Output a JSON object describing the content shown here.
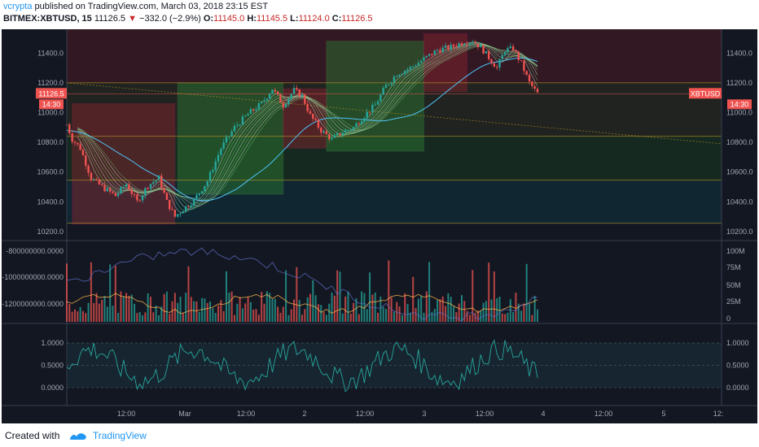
{
  "header": {
    "publisher": "vcrypta",
    "published_text": "published on TradingView.com, March 03, 2018 23:15 EST",
    "symbol": "BITMEX:XBTUSD, 15",
    "last": "11126.5",
    "change": "−332.0 (−2.9%)",
    "o_label": "O:",
    "o_value": "11145.0",
    "h_label": "H:",
    "h_value": "11145.5",
    "l_label": "L:",
    "l_value": "11124.0",
    "c_label": "C:",
    "c_value": "11126.5"
  },
  "footer": {
    "created_with": "Created with",
    "brand": "TradingView"
  },
  "colors": {
    "background": "#131722",
    "up": "#26a69a",
    "down": "#ef5350",
    "accent": "#2196f3",
    "axis_text": "#a0a6b3",
    "ma": "#4fc3f7"
  },
  "chart_data": {
    "type": "candlestick",
    "symbol": "BITMEX:XBTUSD",
    "interval": "15",
    "price_ticks": [
      11400,
      11200,
      11000,
      10800,
      10600,
      10400,
      10200
    ],
    "price_tick_labels": [
      "11400.0",
      "11200.0",
      "11000.0",
      "10800.0",
      "10600.0",
      "10400.0",
      "10200.0"
    ],
    "price_range": [
      10150,
      11560
    ],
    "last_price_label": "11126.5",
    "countdown_label": "14:30",
    "symbol_tag": "XBTUSD",
    "horizontal_levels": [
      11200,
      11126.5,
      10840,
      10545,
      10255
    ],
    "close_path": [
      {
        "t": 0,
        "p": 10920
      },
      {
        "t": 2,
        "p": 10820
      },
      {
        "t": 5,
        "p": 10760
      },
      {
        "t": 9,
        "p": 10560
      },
      {
        "t": 13,
        "p": 10500
      },
      {
        "t": 18,
        "p": 10440
      },
      {
        "t": 22,
        "p": 10520
      },
      {
        "t": 26,
        "p": 10400
      },
      {
        "t": 30,
        "p": 10510
      },
      {
        "t": 34,
        "p": 10560
      },
      {
        "t": 37,
        "p": 10400
      },
      {
        "t": 40,
        "p": 10300
      },
      {
        "t": 43,
        "p": 10350
      },
      {
        "t": 47,
        "p": 10410
      },
      {
        "t": 52,
        "p": 10540
      },
      {
        "t": 57,
        "p": 10760
      },
      {
        "t": 62,
        "p": 10900
      },
      {
        "t": 67,
        "p": 10990
      },
      {
        "t": 72,
        "p": 11060
      },
      {
        "t": 76,
        "p": 11160
      },
      {
        "t": 80,
        "p": 11050
      },
      {
        "t": 84,
        "p": 11150
      },
      {
        "t": 87,
        "p": 11110
      },
      {
        "t": 90,
        "p": 10980
      },
      {
        "t": 94,
        "p": 10880
      },
      {
        "t": 98,
        "p": 10820
      },
      {
        "t": 102,
        "p": 10870
      },
      {
        "t": 106,
        "p": 10900
      },
      {
        "t": 110,
        "p": 10980
      },
      {
        "t": 114,
        "p": 11050
      },
      {
        "t": 118,
        "p": 11180
      },
      {
        "t": 122,
        "p": 11260
      },
      {
        "t": 127,
        "p": 11300
      },
      {
        "t": 132,
        "p": 11360
      },
      {
        "t": 137,
        "p": 11420
      },
      {
        "t": 142,
        "p": 11440
      },
      {
        "t": 146,
        "p": 11470
      },
      {
        "t": 150,
        "p": 11480
      },
      {
        "t": 153,
        "p": 11440
      },
      {
        "t": 156,
        "p": 11370
      },
      {
        "t": 159,
        "p": 11300
      },
      {
        "t": 162,
        "p": 11420
      },
      {
        "t": 165,
        "p": 11430
      },
      {
        "t": 168,
        "p": 11330
      },
      {
        "t": 171,
        "p": 11200
      },
      {
        "t": 174,
        "p": 11126.5
      }
    ],
    "trend_zones": [
      {
        "t0": 2,
        "t1": 40,
        "p0": 10250,
        "p1": 11060,
        "dir": "down"
      },
      {
        "t0": 41,
        "t1": 80,
        "p0": 10450,
        "p1": 11200,
        "dir": "up"
      },
      {
        "t0": 80,
        "t1": 96,
        "p0": 10760,
        "p1": 11160,
        "dir": "down"
      },
      {
        "t0": 96,
        "t1": 132,
        "p0": 10740,
        "p1": 11480,
        "dir": "up"
      },
      {
        "t0": 132,
        "t1": 148,
        "p0": 11140,
        "p1": 11530,
        "dir": "down"
      }
    ],
    "volume_ticks_left": [
      -800000000,
      -1000000000,
      -1200000000
    ],
    "volume_ticks_left_labels": [
      "-800000000.0000",
      "-1000000000.0000",
      "-1200000000.0000"
    ],
    "volume_ticks_right_labels": [
      "100M",
      "75M",
      "50M",
      "25M",
      "0"
    ],
    "oscillator_ticks": [
      1,
      0.5,
      0
    ],
    "oscillator_ticks_labels": [
      "1.0000",
      "0.5000",
      "0.0000"
    ],
    "time_axis_labels": [
      "12:00",
      "Mar",
      "12:00",
      "2",
      "12:00",
      "3",
      "12:00",
      "4",
      "12:00",
      "5",
      "12:"
    ]
  }
}
